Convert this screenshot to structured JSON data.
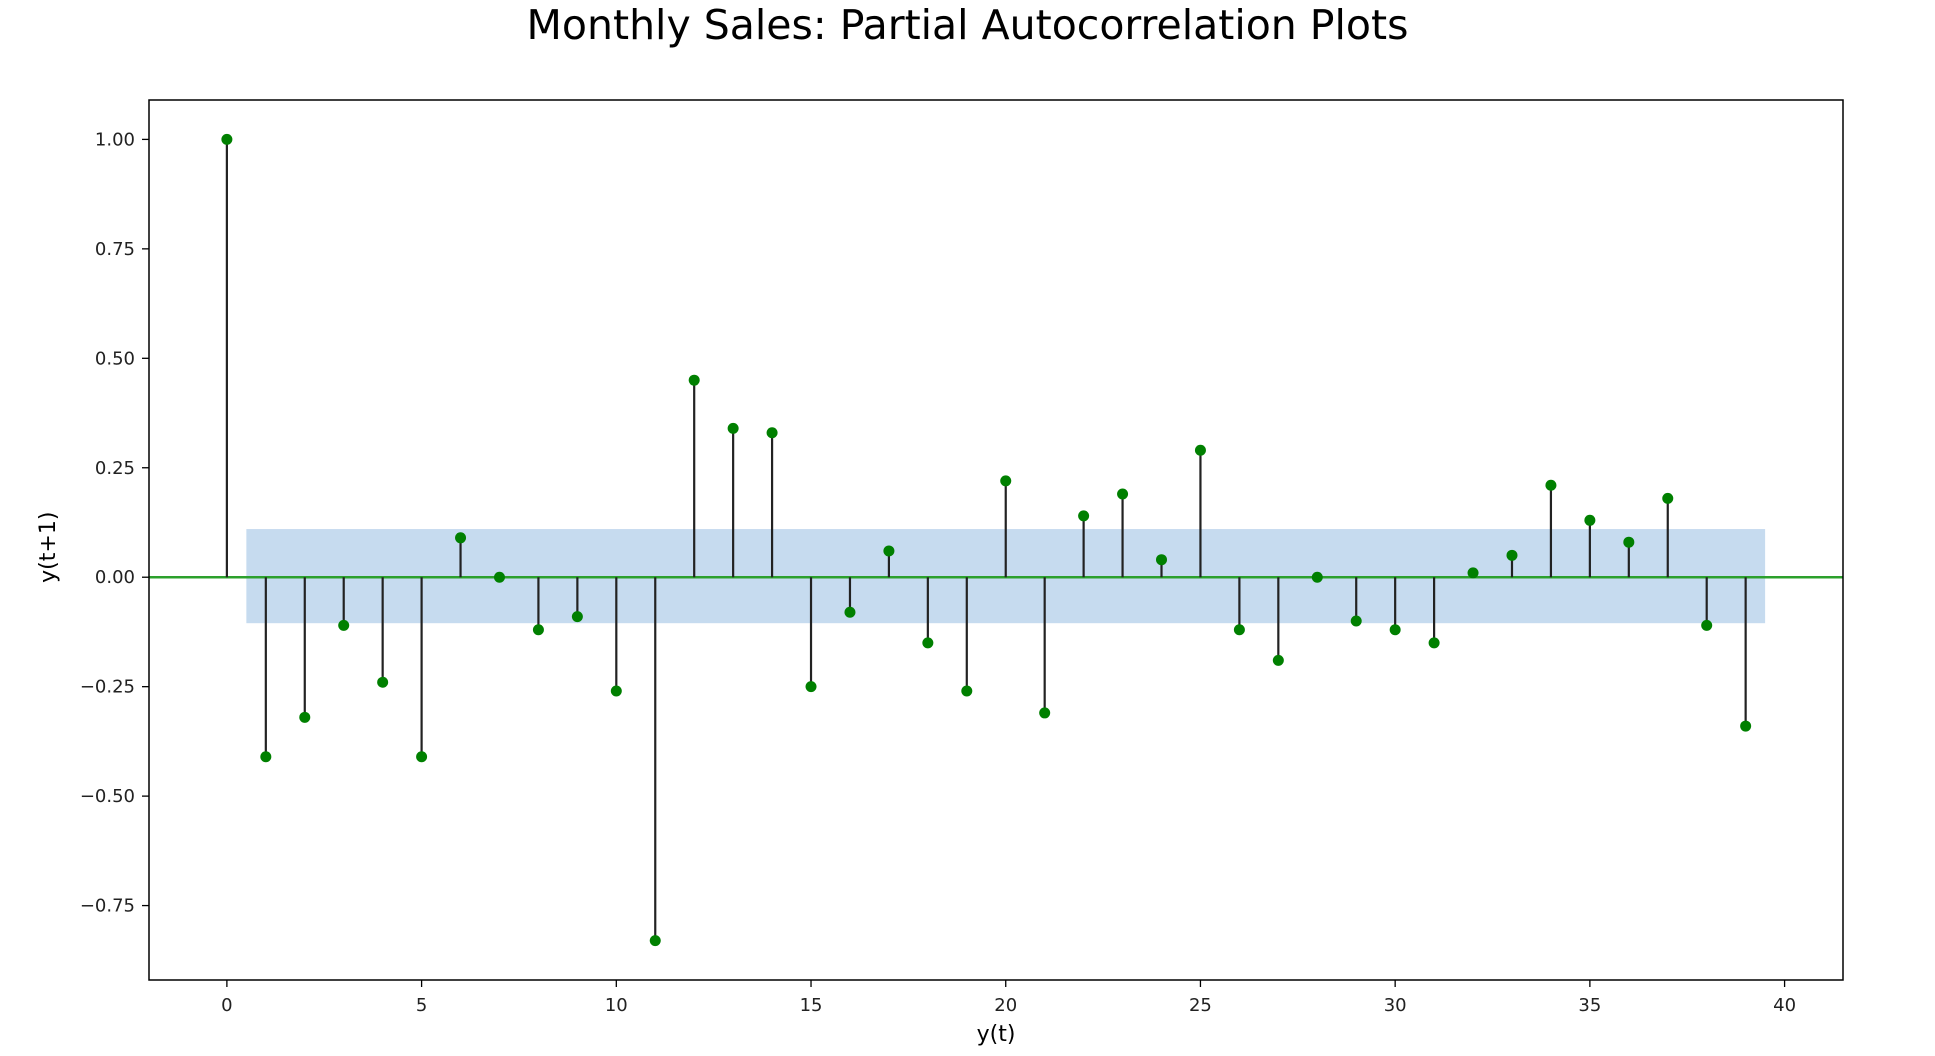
{
  "chart_data": {
    "type": "stem",
    "title": "Monthly Sales: Partial Autocorrelation Plots",
    "xlabel": "y(t)",
    "ylabel": "y(t+1)",
    "xlim": [
      -2,
      41.5
    ],
    "ylim": [
      -0.92,
      1.09
    ],
    "xticks": [
      0,
      5,
      10,
      15,
      20,
      25,
      30,
      35,
      40
    ],
    "yticks": [
      1.0,
      0.75,
      0.5,
      0.25,
      0.0,
      -0.25,
      -0.5,
      -0.75
    ],
    "ytick_labels": [
      "1.00",
      "0.75",
      "0.50",
      "0.25",
      "0.00",
      "−0.25",
      "−0.50",
      "−0.75"
    ],
    "confidence_band": {
      "x": [
        0.5,
        39.5
      ],
      "y": [
        -0.105,
        0.11
      ],
      "color": "#c6dbef"
    },
    "zero_line_color": "#2ca02c",
    "marker_color": "#008000",
    "stem_color": "#222222",
    "grid": false,
    "series": [
      {
        "lags": [
          0,
          1,
          2,
          3,
          4,
          5,
          6,
          7,
          8,
          9,
          10,
          11,
          12,
          13,
          14,
          15,
          16,
          17,
          18,
          19,
          20,
          21,
          22,
          23,
          24,
          25,
          26,
          27,
          28,
          29,
          30,
          31,
          32,
          33,
          34,
          35,
          36,
          37,
          38,
          39
        ],
        "values": [
          1.0,
          -0.41,
          -0.32,
          -0.11,
          -0.24,
          -0.41,
          0.09,
          0.0,
          -0.12,
          -0.09,
          -0.26,
          -0.83,
          0.45,
          0.34,
          0.33,
          -0.25,
          -0.08,
          0.06,
          -0.15,
          -0.26,
          0.22,
          -0.31,
          0.14,
          0.19,
          0.04,
          0.29,
          -0.12,
          -0.19,
          0.0,
          -0.1,
          -0.12,
          -0.15,
          0.01,
          0.05,
          0.21,
          0.13,
          0.08,
          0.18,
          -0.11,
          -0.34
        ]
      }
    ]
  }
}
